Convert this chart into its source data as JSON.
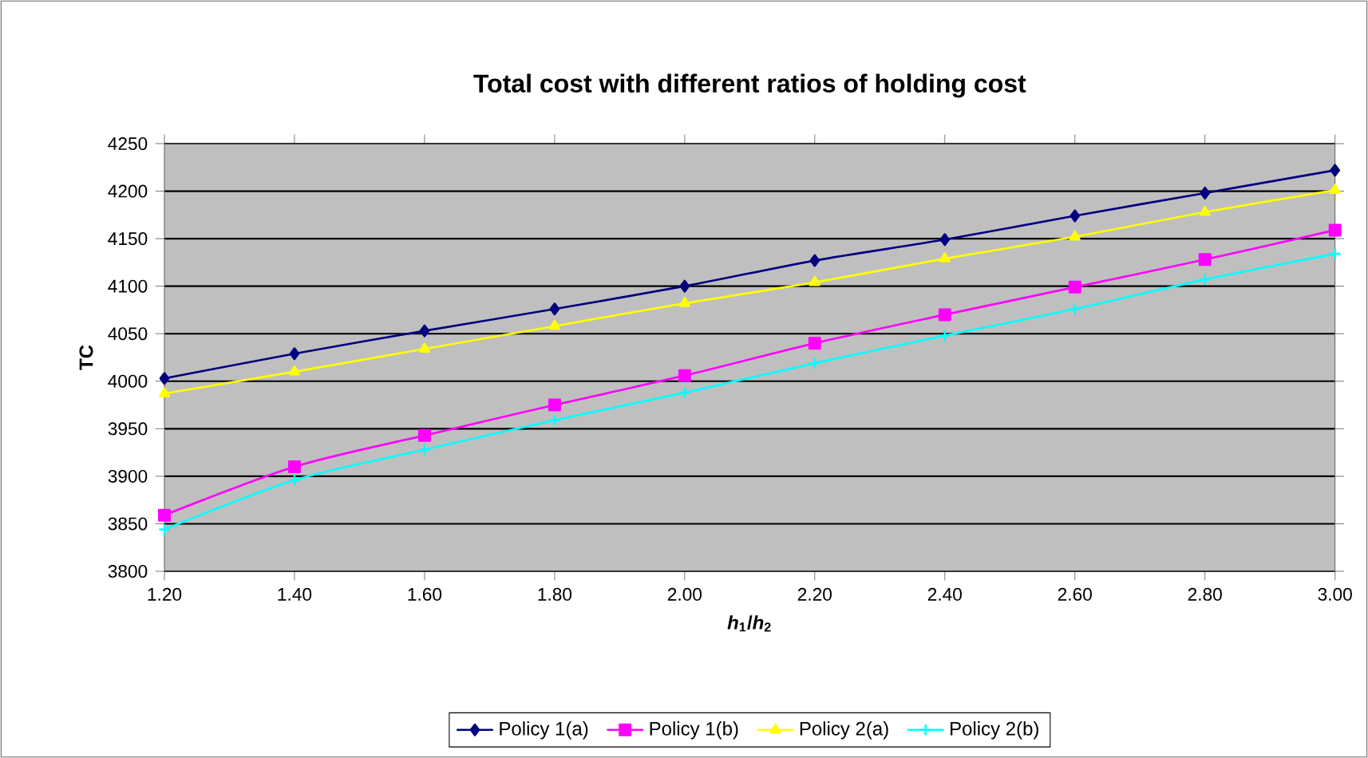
{
  "chart_data": {
    "type": "line",
    "title": "Total cost with different ratios of holding cost",
    "xlabel": "*h*$_{1}$/*h*$_{2}$",
    "ylabel": "TC",
    "x": [
      1.2,
      1.4,
      1.6,
      1.8,
      2.0,
      2.2,
      2.4,
      2.6,
      2.8,
      3.0
    ],
    "series": [
      {
        "name": "Policy 1(a)",
        "color": "#000080",
        "marker": "diamond",
        "values": [
          4003,
          4029,
          4053,
          4076,
          4100,
          4127,
          4149,
          4174,
          4198,
          4222
        ]
      },
      {
        "name": "Policy 1(b)",
        "color": "#ff00ff",
        "marker": "square",
        "values": [
          3859,
          3910,
          3943,
          3975,
          4006,
          4040,
          4070,
          4099,
          4128,
          4159
        ]
      },
      {
        "name": "Policy 2(a)",
        "color": "#ffff00",
        "marker": "triangle",
        "values": [
          3987,
          4010,
          4034,
          4058,
          4082,
          4104,
          4129,
          4152,
          4178,
          4201
        ]
      },
      {
        "name": "Policy 2(b)",
        "color": "#00ffff",
        "marker": "cross",
        "values": [
          3844,
          3896,
          3928,
          3959,
          3988,
          4019,
          4048,
          4076,
          4107,
          4134
        ]
      }
    ],
    "xlim": [
      1.2,
      3.0
    ],
    "xticks": [
      {
        "value": 1.2,
        "label": "1.20"
      },
      {
        "value": 1.4,
        "label": "1.40"
      },
      {
        "value": 1.6,
        "label": "1.60"
      },
      {
        "value": 1.8,
        "label": "1.80"
      },
      {
        "value": 2.0,
        "label": "2.00"
      },
      {
        "value": 2.2,
        "label": "2.20"
      },
      {
        "value": 2.4,
        "label": "2.40"
      },
      {
        "value": 2.6,
        "label": "2.60"
      },
      {
        "value": 2.8,
        "label": "2.80"
      },
      {
        "value": 3.0,
        "label": "3.00"
      }
    ],
    "ylim": [
      3800,
      4250
    ],
    "yticks": [
      3800,
      3850,
      3900,
      3950,
      4000,
      4050,
      4100,
      4150,
      4200,
      4250
    ],
    "grid": "y",
    "legend": "bottom",
    "line_style": "solid"
  }
}
